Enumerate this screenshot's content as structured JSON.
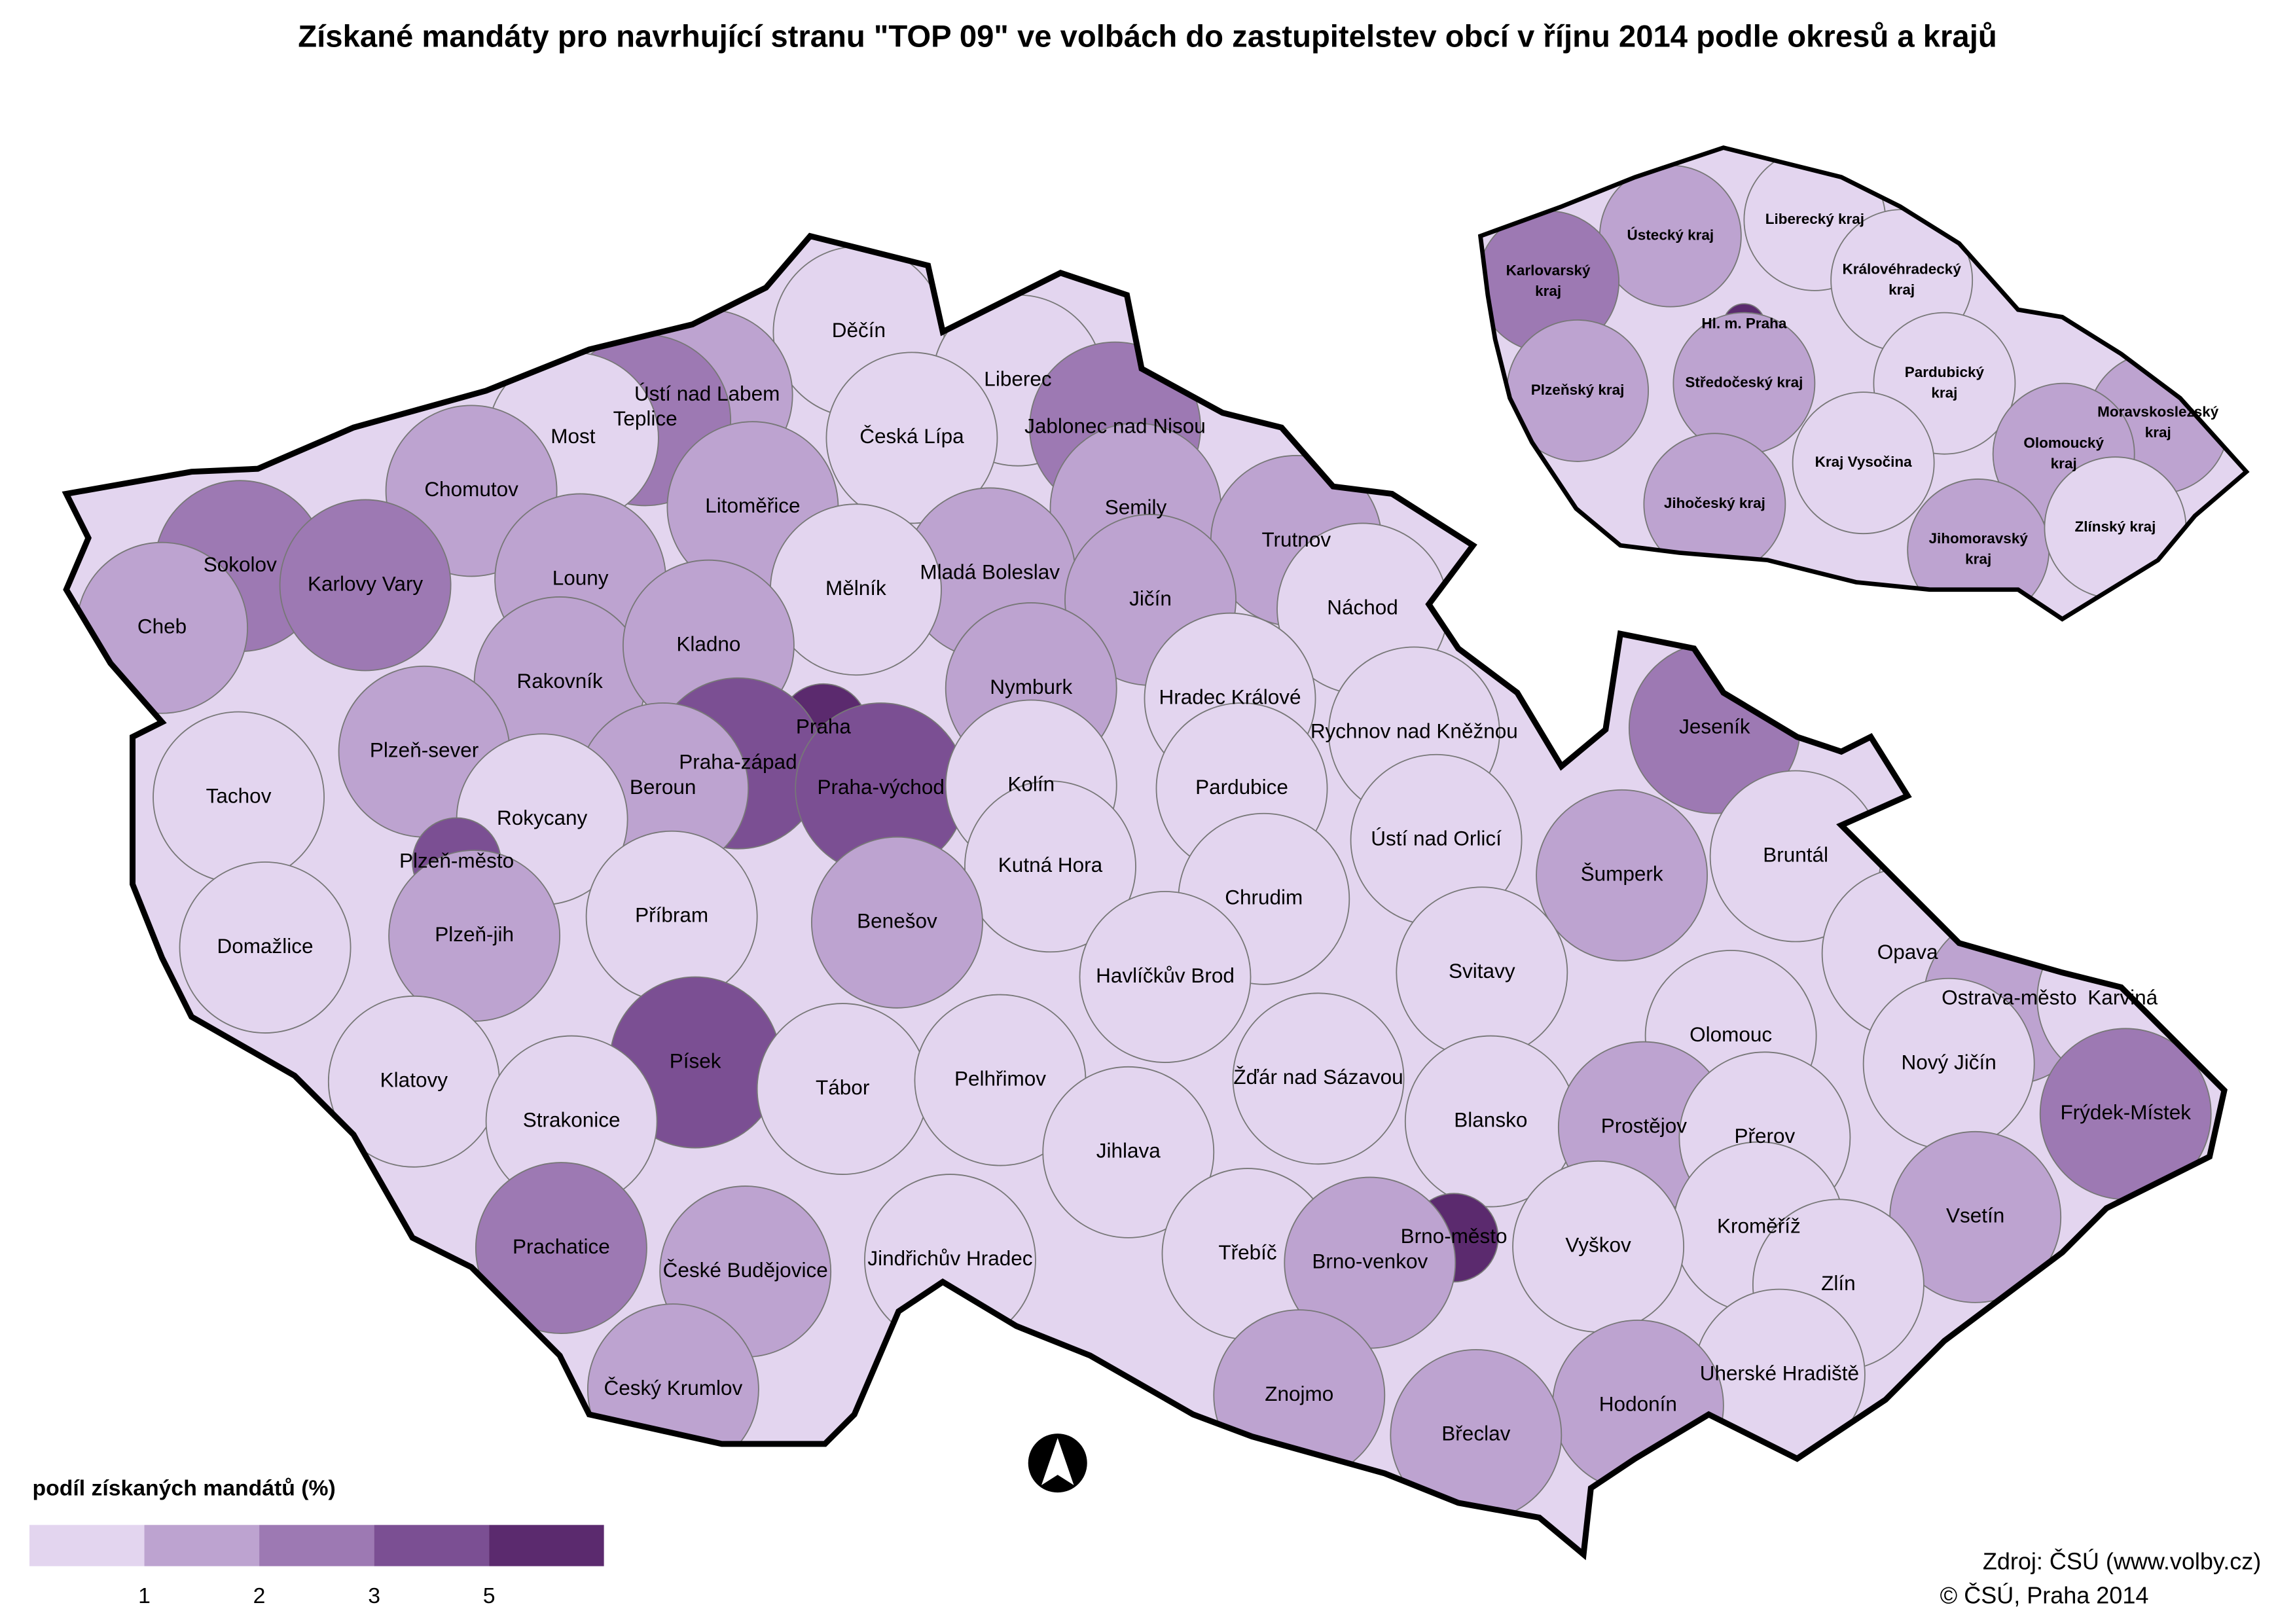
{
  "title": "Získané mandáty pro navrhující stranu \"TOP 09\" ve volbách do zastupitelstev obcí v říjnu 2014 podle okresů a krajů",
  "districts": [
    {
      "name": "Děčín",
      "color": "#e3d5ef"
    },
    {
      "name": "Ústí nad Labem",
      "color": "#bda3d0"
    },
    {
      "name": "Teplice",
      "color": "#9d79b3"
    },
    {
      "name": "Most",
      "color": "#e3d5ef"
    },
    {
      "name": "Chomutov",
      "color": "#bda3d0"
    },
    {
      "name": "Liberec",
      "color": "#e3d5ef"
    },
    {
      "name": "Česká Lípa",
      "color": "#e3d5ef"
    },
    {
      "name": "Jablonec nad Nisou",
      "color": "#9d79b3"
    },
    {
      "name": "Litoměřice",
      "color": "#bda3d0"
    },
    {
      "name": "Semily",
      "color": "#bda3d0"
    },
    {
      "name": "Trutnov",
      "color": "#bda3d0"
    },
    {
      "name": "Sokolov",
      "color": "#9d79b3"
    },
    {
      "name": "Karlovy Vary",
      "color": "#9d79b3"
    },
    {
      "name": "Louny",
      "color": "#bda3d0"
    },
    {
      "name": "Mladá Boleslav",
      "color": "#bda3d0"
    },
    {
      "name": "Mělník",
      "color": "#e3d5ef"
    },
    {
      "name": "Jičín",
      "color": "#bda3d0"
    },
    {
      "name": "Náchod",
      "color": "#e3d5ef"
    },
    {
      "name": "Cheb",
      "color": "#bda3d0"
    },
    {
      "name": "Rakovník",
      "color": "#bda3d0"
    },
    {
      "name": "Kladno",
      "color": "#bda3d0"
    },
    {
      "name": "Nymburk",
      "color": "#bda3d0"
    },
    {
      "name": "Hradec Králové",
      "color": "#e3d5ef"
    },
    {
      "name": "Rychnov nad Kněžnou",
      "color": "#e3d5ef"
    },
    {
      "name": "Praha",
      "color": "#5b2a6e"
    },
    {
      "name": "Praha-západ",
      "color": "#7b4f93"
    },
    {
      "name": "Praha-východ",
      "color": "#7b4f93"
    },
    {
      "name": "Jeseník",
      "color": "#9d79b3"
    },
    {
      "name": "Plzeň-sever",
      "color": "#bda3d0"
    },
    {
      "name": "Tachov",
      "color": "#e3d5ef"
    },
    {
      "name": "Beroun",
      "color": "#bda3d0"
    },
    {
      "name": "Kolín",
      "color": "#e3d5ef"
    },
    {
      "name": "Pardubice",
      "color": "#e3d5ef"
    },
    {
      "name": "Rokycany",
      "color": "#e3d5ef"
    },
    {
      "name": "Plzeň-město",
      "color": "#7b4f93"
    },
    {
      "name": "Ústí nad Orlicí",
      "color": "#e3d5ef"
    },
    {
      "name": "Kutná Hora",
      "color": "#e3d5ef"
    },
    {
      "name": "Bruntál",
      "color": "#e3d5ef"
    },
    {
      "name": "Šumperk",
      "color": "#bda3d0"
    },
    {
      "name": "Příbram",
      "color": "#e3d5ef"
    },
    {
      "name": "Benešov",
      "color": "#bda3d0"
    },
    {
      "name": "Chrudim",
      "color": "#e3d5ef"
    },
    {
      "name": "Plzeň-jih",
      "color": "#bda3d0"
    },
    {
      "name": "Domažlice",
      "color": "#e3d5ef"
    },
    {
      "name": "Opava",
      "color": "#e3d5ef"
    },
    {
      "name": "Svitavy",
      "color": "#e3d5ef"
    },
    {
      "name": "Havlíčkův Brod",
      "color": "#e3d5ef"
    },
    {
      "name": "Ostrava-město",
      "color": "#bda3d0"
    },
    {
      "name": "Karviná",
      "color": "#e3d5ef"
    },
    {
      "name": "Olomouc",
      "color": "#e3d5ef"
    },
    {
      "name": "Písek",
      "color": "#7b4f93"
    },
    {
      "name": "Nový Jičín",
      "color": "#e3d5ef"
    },
    {
      "name": "Klatovy",
      "color": "#e3d5ef"
    },
    {
      "name": "Tábor",
      "color": "#e3d5ef"
    },
    {
      "name": "Pelhřimov",
      "color": "#e3d5ef"
    },
    {
      "name": "Žďár nad Sázavou",
      "color": "#e3d5ef"
    },
    {
      "name": "Frýdek-Místek",
      "color": "#9d79b3"
    },
    {
      "name": "Strakonice",
      "color": "#e3d5ef"
    },
    {
      "name": "Blansko",
      "color": "#e3d5ef"
    },
    {
      "name": "Prostějov",
      "color": "#bda3d0"
    },
    {
      "name": "Jihlava",
      "color": "#e3d5ef"
    },
    {
      "name": "Přerov",
      "color": "#e3d5ef"
    },
    {
      "name": "Vsetín",
      "color": "#bda3d0"
    },
    {
      "name": "Prachatice",
      "color": "#9d79b3"
    },
    {
      "name": "Brno-město",
      "color": "#5b2a6e"
    },
    {
      "name": "Kroměříž",
      "color": "#e3d5ef"
    },
    {
      "name": "Vyškov",
      "color": "#e3d5ef"
    },
    {
      "name": "Jindřichův Hradec",
      "color": "#e3d5ef"
    },
    {
      "name": "Třebíč",
      "color": "#e3d5ef"
    },
    {
      "name": "Brno-venkov",
      "color": "#bda3d0"
    },
    {
      "name": "České Budějovice",
      "color": "#bda3d0"
    },
    {
      "name": "Zlín",
      "color": "#e3d5ef"
    },
    {
      "name": "Český Krumlov",
      "color": "#bda3d0"
    },
    {
      "name": "Znojmo",
      "color": "#bda3d0"
    },
    {
      "name": "Uherské Hradiště",
      "color": "#e3d5ef"
    },
    {
      "name": "Hodonín",
      "color": "#bda3d0"
    },
    {
      "name": "Břeclav",
      "color": "#bda3d0"
    }
  ],
  "regions": [
    {
      "name": "Ústecký kraj",
      "color": "#bda3d0"
    },
    {
      "name": "Liberecký kraj",
      "color": "#e3d5ef"
    },
    {
      "name": "Karlovarský kraj",
      "color": "#9d79b3"
    },
    {
      "name": "Královéhradecký kraj",
      "color": "#e3d5ef"
    },
    {
      "name": "Hl. m. Praha",
      "color": "#5b2a6e"
    },
    {
      "name": "Plzeňský kraj",
      "color": "#bda3d0"
    },
    {
      "name": "Středočeský kraj",
      "color": "#bda3d0"
    },
    {
      "name": "Pardubický kraj",
      "color": "#e3d5ef"
    },
    {
      "name": "Moravskoslezský kraj",
      "color": "#bda3d0"
    },
    {
      "name": "Olomoucký kraj",
      "color": "#bda3d0"
    },
    {
      "name": "Kraj Vysočina",
      "color": "#e3d5ef"
    },
    {
      "name": "Jihočeský kraj",
      "color": "#bda3d0"
    },
    {
      "name": "Jihomoravský kraj",
      "color": "#bda3d0"
    },
    {
      "name": "Zlínský kraj",
      "color": "#e3d5ef"
    }
  ],
  "legend": {
    "title": "podíl získaných mandátů (%)",
    "colors": [
      "#e3d5ef",
      "#bda3d0",
      "#9d79b3",
      "#7b4f93",
      "#5b2a6e"
    ],
    "ticks": [
      1,
      2,
      3,
      5
    ]
  },
  "source": [
    "Zdroj: ČSÚ (www.volby.cz)",
    "© ČSÚ, Praha 2014"
  ]
}
